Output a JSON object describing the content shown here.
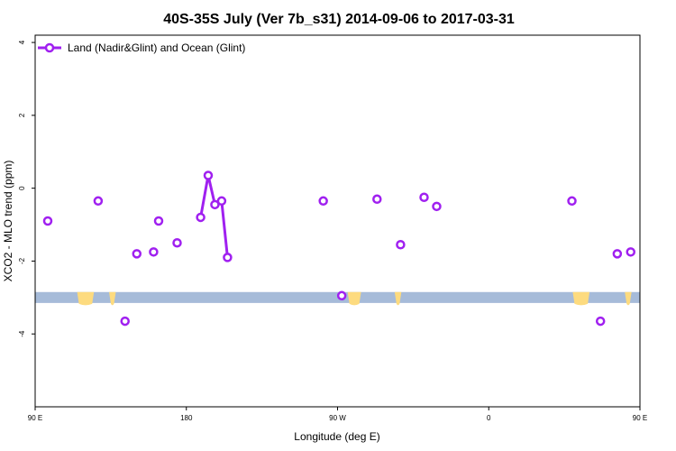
{
  "chart_data": {
    "type": "line",
    "title": "40S-35S July (Ver 7b_s31)   2014-09-06 to 2017-03-31",
    "xlabel": "Longitude (deg E)",
    "ylabel": "XCO2 - MLO trend (ppm)",
    "xlim": [
      90,
      450
    ],
    "ylim": [
      -6,
      4.2
    ],
    "x_ticks": [
      {
        "value": 90,
        "label": "90 E"
      },
      {
        "value": 180,
        "label": "180"
      },
      {
        "value": 270,
        "label": "90 W"
      },
      {
        "value": 360,
        "label": "0"
      },
      {
        "value": 450,
        "label": "90 E"
      },
      {
        "value": 540,
        "label": "180"
      }
    ],
    "y_ticks": [
      {
        "value": 4,
        "label": "4"
      },
      {
        "value": 2,
        "label": "2"
      },
      {
        "value": 0,
        "label": "0"
      },
      {
        "value": -2,
        "label": "-2"
      },
      {
        "value": -4,
        "label": "-4"
      }
    ],
    "legend": {
      "position": "top-left"
    },
    "colors": {
      "series": "#a020f0",
      "band": "#a6bbd9",
      "land": "#fddb7f"
    },
    "series": [
      {
        "name": "Land (Nadir&Glint) and Ocean (Glint)",
        "points": [
          {
            "x": 127.5,
            "y": -0.35
          },
          {
            "x": 143.5,
            "y": -3.65
          },
          {
            "x": 150.5,
            "y": -1.8
          },
          {
            "x": 160.5,
            "y": -1.75
          },
          {
            "x": 163.5,
            "y": -0.9
          },
          {
            "x": 174.5,
            "y": -1.5
          },
          {
            "x": 188.5,
            "y": -0.8
          },
          {
            "x": 193,
            "y": 0.35
          },
          {
            "x": 197,
            "y": -0.45
          },
          {
            "x": 201,
            "y": -0.35
          },
          {
            "x": 204.5,
            "y": -1.9
          },
          {
            "x": 261.5,
            "y": -0.35
          },
          {
            "x": 272.5,
            "y": -2.95
          },
          {
            "x": 293.5,
            "y": -0.3
          },
          {
            "x": 307.5,
            "y": -1.55
          },
          {
            "x": 321.5,
            "y": -0.25
          },
          {
            "x": 329,
            "y": -0.5
          },
          {
            "x": 409.5,
            "y": -0.35
          },
          {
            "x": 426.5,
            "y": -3.65
          },
          {
            "x": 436.5,
            "y": -1.8
          },
          {
            "x": 444.5,
            "y": -1.75
          },
          {
            "x": 457.5,
            "y": -0.9
          }
        ],
        "connected_segments": [
          [
            188.5,
            193,
            197,
            201,
            204.5
          ]
        ]
      }
    ]
  }
}
